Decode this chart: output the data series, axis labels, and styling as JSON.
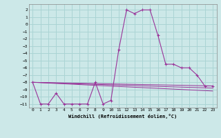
{
  "title": "",
  "xlabel": "Windchill (Refroidissement éolien,°C)",
  "background_color": "#cce8e8",
  "grid_color": "#aad4d4",
  "line_color": "#993399",
  "xlim": [
    -0.5,
    23.5
  ],
  "ylim": [
    -11.5,
    2.8
  ],
  "xticks": [
    0,
    1,
    2,
    3,
    4,
    5,
    6,
    7,
    8,
    9,
    10,
    11,
    12,
    13,
    14,
    15,
    16,
    17,
    18,
    19,
    20,
    21,
    22,
    23
  ],
  "yticks": [
    2,
    1,
    0,
    -1,
    -2,
    -3,
    -4,
    -5,
    -6,
    -7,
    -8,
    -9,
    -10,
    -11
  ],
  "series1_x": [
    0,
    1,
    2,
    3,
    4,
    5,
    6,
    7,
    8,
    9,
    10,
    11,
    12,
    13,
    14,
    15,
    16,
    17,
    18,
    19,
    20,
    21,
    22,
    23
  ],
  "series1_y": [
    -8.0,
    -11.0,
    -11.0,
    -9.5,
    -11.0,
    -11.0,
    -11.0,
    -11.0,
    -8.0,
    -11.0,
    -10.5,
    -3.5,
    2.0,
    1.5,
    2.0,
    2.0,
    -1.5,
    -5.5,
    -5.5,
    -6.0,
    -6.0,
    -7.0,
    -8.5,
    -8.5
  ],
  "series2_x": [
    0,
    23
  ],
  "series2_y": [
    -8.0,
    -8.5
  ],
  "series3_x": [
    0,
    23
  ],
  "series3_y": [
    -8.0,
    -8.8
  ],
  "series4_x": [
    0,
    23
  ],
  "series4_y": [
    -8.0,
    -9.2
  ]
}
